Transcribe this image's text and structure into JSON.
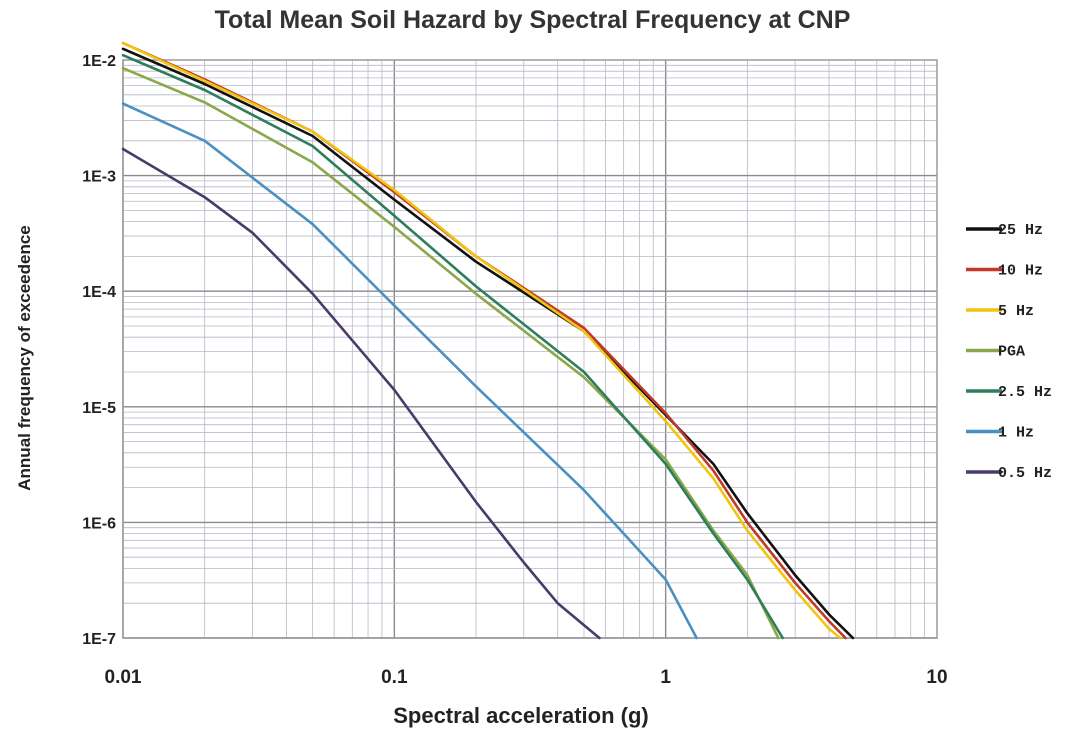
{
  "chart_data": {
    "type": "line",
    "title": "Total Mean Soil Hazard by Spectral Frequency at CNP",
    "xlabel": "Spectral acceleration (g)",
    "ylabel": "Annual frequency of exceedence",
    "xscale": "log",
    "yscale": "log",
    "xlim": [
      0.01,
      10
    ],
    "ylim": [
      1e-07,
      0.01
    ],
    "x_tick_labels": [
      "0.01",
      "0.1",
      "1",
      "10"
    ],
    "y_tick_labels": [
      "1E-2",
      "1E-3",
      "1E-4",
      "1E-5",
      "1E-6",
      "1E-7"
    ],
    "grid": true,
    "legend_position": "right",
    "series": [
      {
        "name": "25 Hz",
        "color": "#111111",
        "points": [
          [
            0.01,
            0.0125
          ],
          [
            0.02,
            0.0062
          ],
          [
            0.05,
            0.0022
          ],
          [
            0.1,
            0.00062
          ],
          [
            0.2,
            0.00018
          ],
          [
            0.5,
            4.5e-05
          ],
          [
            1.0,
            8.5e-06
          ],
          [
            1.5,
            3.2e-06
          ],
          [
            2.0,
            1.2e-06
          ],
          [
            3.0,
            3.5e-07
          ],
          [
            4.0,
            1.6e-07
          ],
          [
            4.9,
            1e-07
          ]
        ]
      },
      {
        "name": "10 Hz",
        "color": "#c0392b",
        "points": [
          [
            0.01,
            0.014
          ],
          [
            0.02,
            0.0068
          ],
          [
            0.05,
            0.0024
          ],
          [
            0.1,
            0.00072
          ],
          [
            0.2,
            0.0002
          ],
          [
            0.5,
            4.8e-05
          ],
          [
            1.0,
            8.8e-06
          ],
          [
            1.5,
            2.8e-06
          ],
          [
            2.0,
            1e-06
          ],
          [
            3.0,
            3e-07
          ],
          [
            4.0,
            1.4e-07
          ],
          [
            4.6,
            1e-07
          ]
        ]
      },
      {
        "name": "5 Hz",
        "color": "#f1c40f",
        "points": [
          [
            0.01,
            0.014
          ],
          [
            0.02,
            0.0066
          ],
          [
            0.05,
            0.0024
          ],
          [
            0.1,
            0.00075
          ],
          [
            0.2,
            0.0002
          ],
          [
            0.5,
            4.5e-05
          ],
          [
            1.0,
            7.5e-06
          ],
          [
            1.5,
            2.4e-06
          ],
          [
            2.0,
            8.5e-07
          ],
          [
            3.0,
            2.6e-07
          ],
          [
            4.0,
            1.2e-07
          ],
          [
            4.4,
            1e-07
          ]
        ]
      },
      {
        "name": "PGA",
        "color": "#8aa84a",
        "points": [
          [
            0.01,
            0.0085
          ],
          [
            0.02,
            0.0043
          ],
          [
            0.05,
            0.0013
          ],
          [
            0.1,
            0.00036
          ],
          [
            0.2,
            9.5e-05
          ],
          [
            0.5,
            1.8e-05
          ],
          [
            1.0,
            3.5e-06
          ],
          [
            1.5,
            8.5e-07
          ],
          [
            2.0,
            3.5e-07
          ],
          [
            2.6,
            1e-07
          ]
        ]
      },
      {
        "name": "2.5 Hz",
        "color": "#2e7d5b",
        "points": [
          [
            0.01,
            0.011
          ],
          [
            0.02,
            0.0055
          ],
          [
            0.05,
            0.0018
          ],
          [
            0.1,
            0.00045
          ],
          [
            0.2,
            0.00011
          ],
          [
            0.5,
            2e-05
          ],
          [
            1.0,
            3.2e-06
          ],
          [
            1.5,
            8e-07
          ],
          [
            2.0,
            3.2e-07
          ],
          [
            2.7,
            1e-07
          ]
        ]
      },
      {
        "name": "1 Hz",
        "color": "#4a90c2",
        "points": [
          [
            0.01,
            0.0042
          ],
          [
            0.02,
            0.002
          ],
          [
            0.05,
            0.00038
          ],
          [
            0.1,
            7.5e-05
          ],
          [
            0.2,
            1.5e-05
          ],
          [
            0.5,
            1.9e-06
          ],
          [
            1.0,
            3.2e-07
          ],
          [
            1.3,
            1e-07
          ]
        ]
      },
      {
        "name": "0.5 Hz",
        "color": "#4a3a6a",
        "points": [
          [
            0.01,
            0.0017
          ],
          [
            0.02,
            0.00065
          ],
          [
            0.03,
            0.00032
          ],
          [
            0.05,
            9.5e-05
          ],
          [
            0.1,
            1.4e-05
          ],
          [
            0.2,
            1.5e-06
          ],
          [
            0.3,
            4.5e-07
          ],
          [
            0.4,
            2e-07
          ],
          [
            0.57,
            1e-07
          ]
        ]
      }
    ]
  }
}
